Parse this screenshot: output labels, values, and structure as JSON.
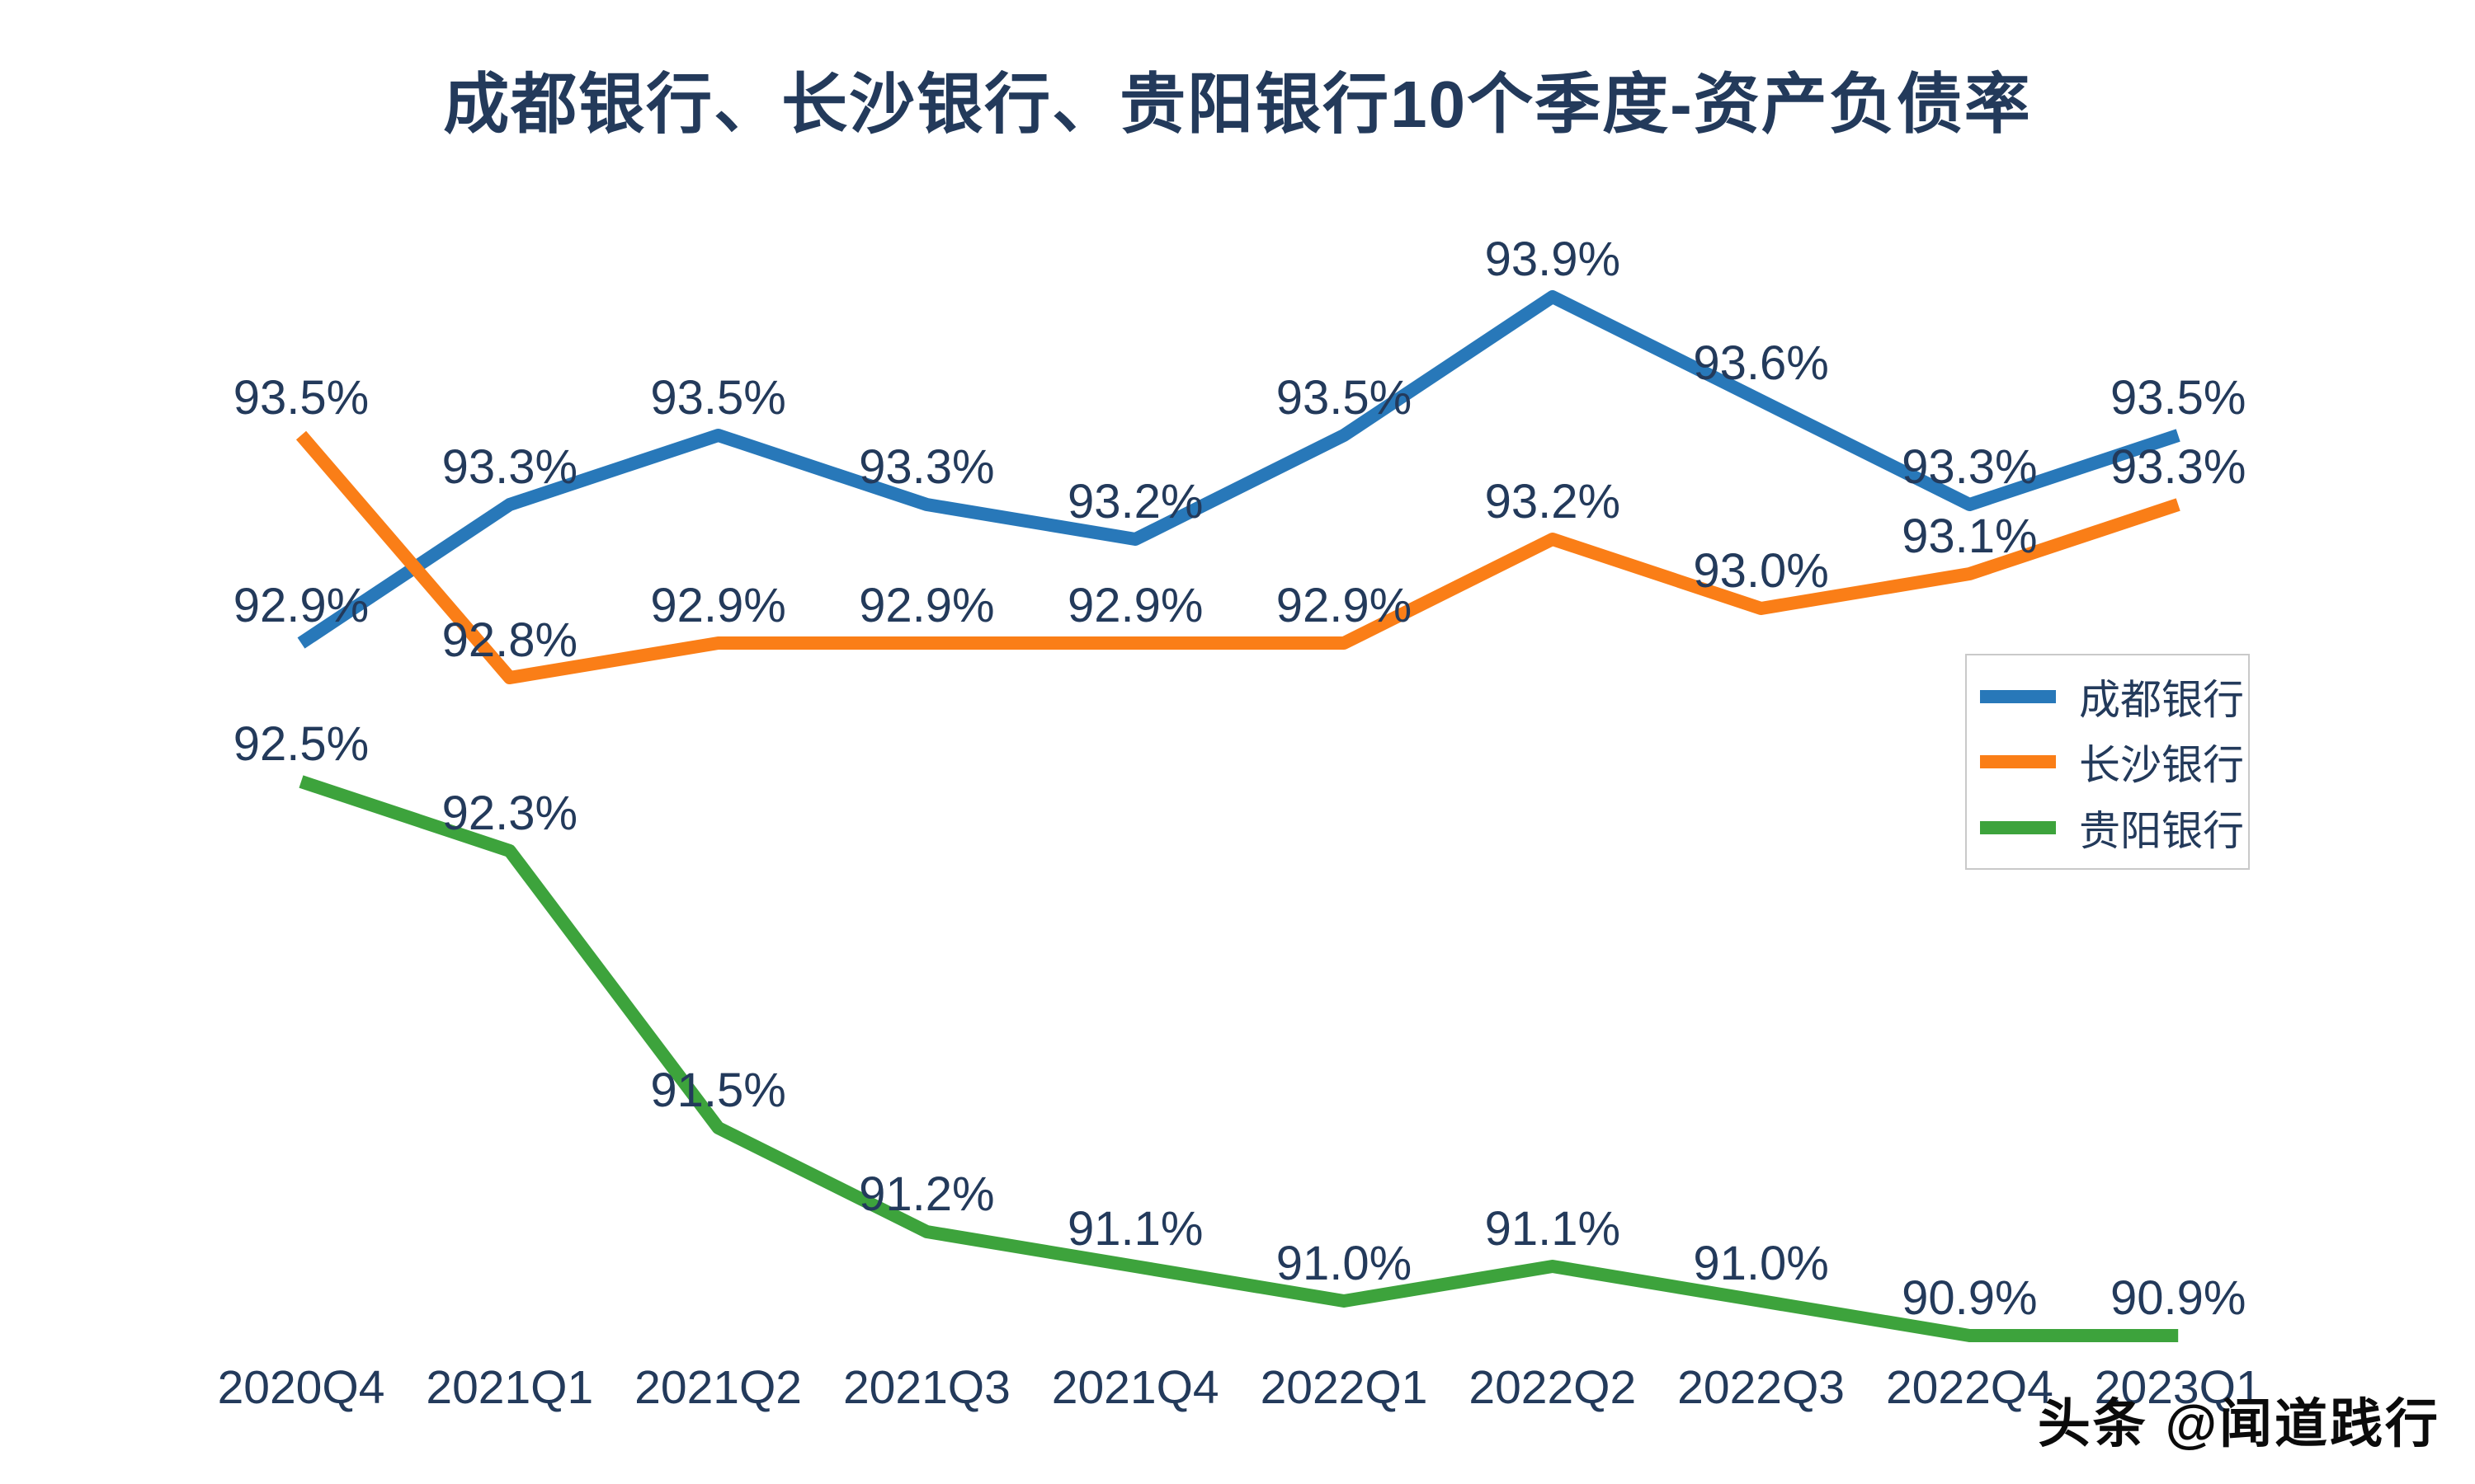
{
  "chart_data": {
    "type": "line",
    "title": "成都银行、长沙银行、贵阳银行10个季度-资产负债率",
    "categories": [
      "2020Q4",
      "2021Q1",
      "2021Q2",
      "2021Q3",
      "2021Q4",
      "2022Q1",
      "2022Q2",
      "2022Q3",
      "2022Q4",
      "2023Q1"
    ],
    "series": [
      {
        "name": "成都银行",
        "color": "#2878B9",
        "values": [
          92.9,
          93.3,
          93.5,
          93.3,
          93.2,
          93.5,
          93.9,
          93.6,
          93.3,
          93.5
        ]
      },
      {
        "name": "长沙银行",
        "color": "#FA7E17",
        "values": [
          93.5,
          92.8,
          92.9,
          92.9,
          92.9,
          92.9,
          93.2,
          93.0,
          93.1,
          93.3
        ]
      },
      {
        "name": "贵阳银行",
        "color": "#3DA33C",
        "values": [
          92.5,
          92.3,
          91.5,
          91.2,
          91.1,
          91.0,
          91.1,
          91.0,
          90.9,
          90.9
        ]
      }
    ],
    "label_format": "0.0%",
    "ylim": [
      90.5,
      94.2
    ],
    "grid": false,
    "axes_visible": false,
    "legend_position": "middle-right",
    "text_color": "#233A5B"
  },
  "watermark": {
    "text": "头条 @闻道践行"
  }
}
